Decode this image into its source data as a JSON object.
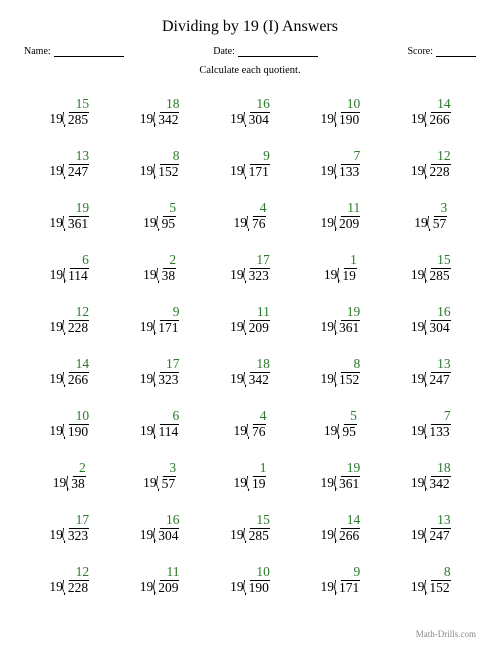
{
  "title": "Dividing by 19 (I) Answers",
  "meta": {
    "name_label": "Name:",
    "date_label": "Date:",
    "score_label": "Score:"
  },
  "subtitle": "Calculate each quotient.",
  "footer": "Math-Drills.com",
  "answer_color": "#2a7a2a",
  "problems": [
    {
      "q": 15,
      "d": 19,
      "n": 285
    },
    {
      "q": 18,
      "d": 19,
      "n": 342
    },
    {
      "q": 16,
      "d": 19,
      "n": 304
    },
    {
      "q": 10,
      "d": 19,
      "n": 190
    },
    {
      "q": 14,
      "d": 19,
      "n": 266
    },
    {
      "q": 13,
      "d": 19,
      "n": 247
    },
    {
      "q": 8,
      "d": 19,
      "n": 152
    },
    {
      "q": 9,
      "d": 19,
      "n": 171
    },
    {
      "q": 7,
      "d": 19,
      "n": 133
    },
    {
      "q": 12,
      "d": 19,
      "n": 228
    },
    {
      "q": 19,
      "d": 19,
      "n": 361
    },
    {
      "q": 5,
      "d": 19,
      "n": 95
    },
    {
      "q": 4,
      "d": 19,
      "n": 76
    },
    {
      "q": 11,
      "d": 19,
      "n": 209
    },
    {
      "q": 3,
      "d": 19,
      "n": 57
    },
    {
      "q": 6,
      "d": 19,
      "n": 114
    },
    {
      "q": 2,
      "d": 19,
      "n": 38
    },
    {
      "q": 17,
      "d": 19,
      "n": 323
    },
    {
      "q": 1,
      "d": 19,
      "n": 19
    },
    {
      "q": 15,
      "d": 19,
      "n": 285
    },
    {
      "q": 12,
      "d": 19,
      "n": 228
    },
    {
      "q": 9,
      "d": 19,
      "n": 171
    },
    {
      "q": 11,
      "d": 19,
      "n": 209
    },
    {
      "q": 19,
      "d": 19,
      "n": 361
    },
    {
      "q": 16,
      "d": 19,
      "n": 304
    },
    {
      "q": 14,
      "d": 19,
      "n": 266
    },
    {
      "q": 17,
      "d": 19,
      "n": 323
    },
    {
      "q": 18,
      "d": 19,
      "n": 342
    },
    {
      "q": 8,
      "d": 19,
      "n": 152
    },
    {
      "q": 13,
      "d": 19,
      "n": 247
    },
    {
      "q": 10,
      "d": 19,
      "n": 190
    },
    {
      "q": 6,
      "d": 19,
      "n": 114
    },
    {
      "q": 4,
      "d": 19,
      "n": 76
    },
    {
      "q": 5,
      "d": 19,
      "n": 95
    },
    {
      "q": 7,
      "d": 19,
      "n": 133
    },
    {
      "q": 2,
      "d": 19,
      "n": 38
    },
    {
      "q": 3,
      "d": 19,
      "n": 57
    },
    {
      "q": 1,
      "d": 19,
      "n": 19
    },
    {
      "q": 19,
      "d": 19,
      "n": 361
    },
    {
      "q": 18,
      "d": 19,
      "n": 342
    },
    {
      "q": 17,
      "d": 19,
      "n": 323
    },
    {
      "q": 16,
      "d": 19,
      "n": 304
    },
    {
      "q": 15,
      "d": 19,
      "n": 285
    },
    {
      "q": 14,
      "d": 19,
      "n": 266
    },
    {
      "q": 13,
      "d": 19,
      "n": 247
    },
    {
      "q": 12,
      "d": 19,
      "n": 228
    },
    {
      "q": 11,
      "d": 19,
      "n": 209
    },
    {
      "q": 10,
      "d": 19,
      "n": 190
    },
    {
      "q": 9,
      "d": 19,
      "n": 171
    },
    {
      "q": 8,
      "d": 19,
      "n": 152
    }
  ]
}
